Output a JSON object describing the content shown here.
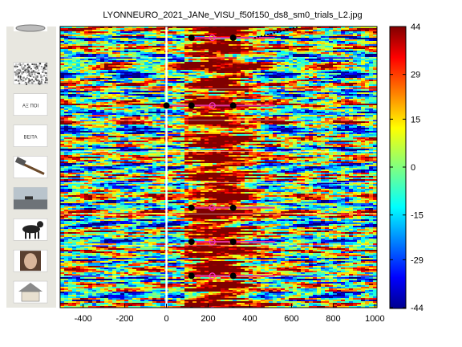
{
  "title": "LYONNEURO_2021_JANe_VISU_f50f150_ds8_sm0_trials_L2.jpg",
  "chart_data": {
    "type": "heatmap",
    "title": "LYONNEURO_2021_JANe_VISU_f50f150_ds8_sm0_trials_L2.jpg",
    "xlabel": "",
    "ylabel": "",
    "xlim": [
      -510,
      1010
    ],
    "x_ticks": [
      -400,
      -200,
      0,
      200,
      400,
      600,
      800,
      1000
    ],
    "stimulus_onset_x": 0,
    "colorbar": {
      "range": [
        -44,
        44
      ],
      "ticks": [
        44,
        29,
        15,
        0,
        -15,
        -29,
        -44
      ],
      "colormap": "jet"
    },
    "trial_groups": [
      {
        "icon": "plate-icon",
        "label": ""
      },
      {
        "icon": "noise-texture-icon",
        "label": ""
      },
      {
        "icon": "scrambled-word-icon",
        "label": "ΑΞ ΠΟΙ"
      },
      {
        "icon": "pseudoword-icon",
        "label": "ΒΕΙΤΑ"
      },
      {
        "icon": "hammer-icon",
        "label": ""
      },
      {
        "icon": "landscape-icon",
        "label": ""
      },
      {
        "icon": "dog-icon",
        "label": ""
      },
      {
        "icon": "face-icon",
        "label": ""
      },
      {
        "icon": "house-icon",
        "label": ""
      }
    ],
    "response_markers": [
      {
        "group": 0,
        "black": [
          120,
          320
        ],
        "magenta": [
          220
        ],
        "line_end": 520
      },
      {
        "group": 2,
        "black": [
          0,
          120,
          320
        ],
        "magenta": [
          220
        ],
        "line_end": 520
      },
      {
        "group": 5,
        "black": [
          120,
          320
        ],
        "magenta": [
          220
        ],
        "line_end": 520
      },
      {
        "group": 6,
        "black": [
          120,
          320
        ],
        "magenta": [
          220
        ],
        "line_end": 520
      },
      {
        "group": 7,
        "black": [
          120,
          320
        ],
        "magenta": [
          220
        ],
        "line_end": 520
      },
      {
        "group": 8,
        "black": [
          120,
          320
        ],
        "magenta": [
          220
        ],
        "line_end": 520
      },
      {
        "group": 9,
        "black": [
          120,
          320
        ],
        "magenta": [
          220
        ],
        "line_end": 520
      }
    ]
  }
}
